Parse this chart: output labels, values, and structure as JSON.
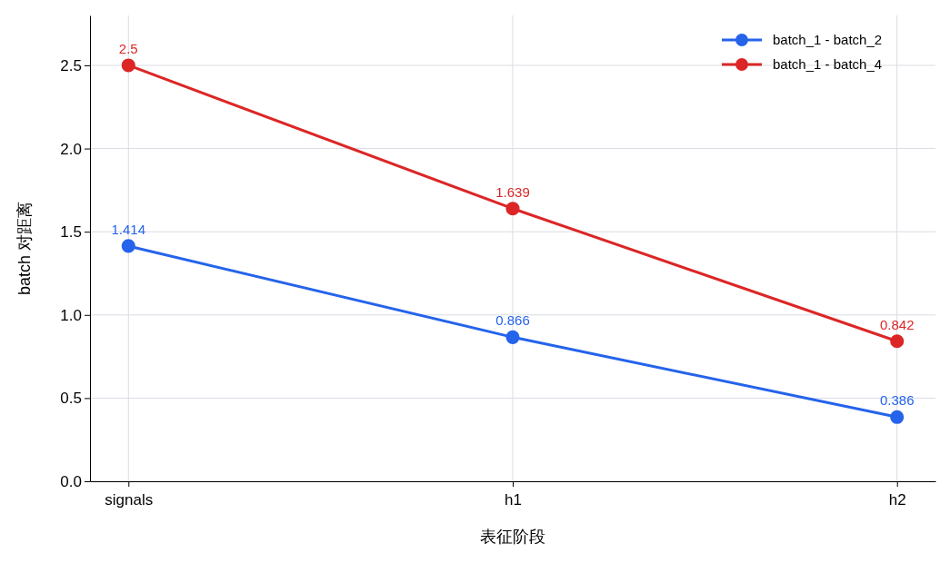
{
  "chart_data": {
    "type": "line",
    "xlabel": "表征阶段",
    "ylabel": "batch 对距离",
    "categories": [
      "signals",
      "h1",
      "h2"
    ],
    "series": [
      {
        "name": "batch_1 - batch_2",
        "color": "#2563eb",
        "values": [
          1.414,
          0.866,
          0.386
        ]
      },
      {
        "name": "batch_1 - batch_4",
        "color": "#dc2626",
        "values": [
          2.5,
          1.639,
          0.842
        ]
      }
    ],
    "ylim": [
      0,
      2.8
    ],
    "yticks": [
      {
        "value": 0,
        "label": "0.0"
      },
      {
        "value": 0.5,
        "label": "0.5"
      },
      {
        "value": 1,
        "label": "1.0"
      },
      {
        "value": 1.5,
        "label": "1.5"
      },
      {
        "value": 2,
        "label": "2.0"
      },
      {
        "value": 2.5,
        "label": "2.5"
      }
    ],
    "grid": true,
    "legend": "top right",
    "marker": "circle",
    "line_style": "solid",
    "data_labels": true
  }
}
